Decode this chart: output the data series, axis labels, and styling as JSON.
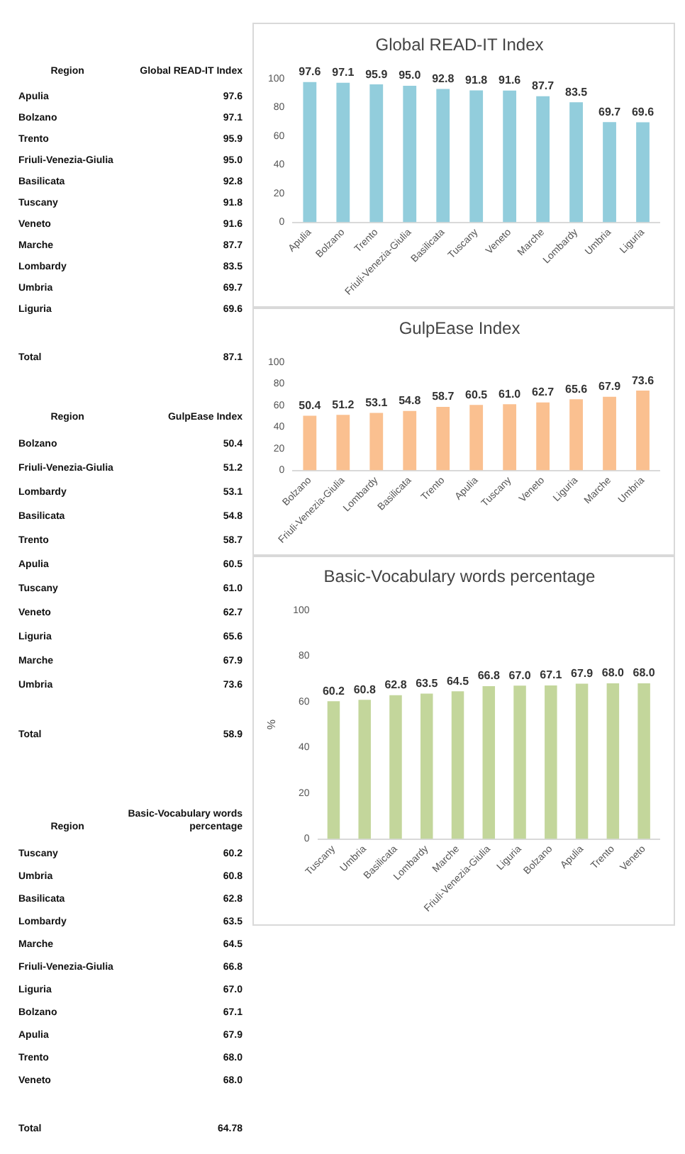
{
  "chart_data": [
    {
      "type": "bar",
      "title": "Global READ-IT Index",
      "categories": [
        "Apulia",
        "Bolzano",
        "Trento",
        "Friuli-Venezia-Giulia",
        "Basilicata",
        "Tuscany",
        "Veneto",
        "Marche",
        "Lombardy",
        "Umbria",
        "Liguria"
      ],
      "values": [
        97.6,
        97.1,
        95.9,
        95.0,
        92.8,
        91.8,
        91.6,
        87.7,
        83.5,
        69.7,
        69.6
      ],
      "value_labels": [
        "97.6",
        "97.1",
        "95.9",
        "95.0",
        "92.8",
        "91.8",
        "91.6",
        "87.7",
        "83.5",
        "69.7",
        "69.6"
      ],
      "color": "#92cddc",
      "ylim": [
        0,
        100
      ],
      "yticks": [
        0,
        20,
        40,
        60,
        80,
        100
      ],
      "grid": false,
      "legend": false,
      "annotations": [
        "Region",
        "Global READ-IT Index",
        "Total",
        "87.1"
      ]
    },
    {
      "type": "bar",
      "title": "GulpEase Index",
      "categories": [
        "Bolzano",
        "Friuli-Venezia-Giulia",
        "Lombardy",
        "Basilicata",
        "Trento",
        "Apulia",
        "Tuscany",
        "Veneto",
        "Liguria",
        "Marche",
        "Umbria"
      ],
      "values": [
        50.4,
        51.2,
        53.1,
        54.8,
        58.7,
        60.5,
        61.0,
        62.7,
        65.6,
        67.9,
        73.6
      ],
      "value_labels": [
        "50.4",
        "51.2",
        "53.1",
        "54.8",
        "58.7",
        "60.5",
        "61.0",
        "62.7",
        "65.6",
        "67.9",
        "73.6"
      ],
      "color": "#fac090",
      "ylim": [
        0,
        100
      ],
      "yticks": [
        0,
        20,
        40,
        60,
        80,
        100
      ],
      "grid": false,
      "legend": false,
      "annotations": [
        "Region",
        "GulpEase Index",
        "Total",
        "58.9"
      ]
    },
    {
      "type": "bar",
      "title": "Basic-Vocabulary words percentage",
      "ylabel": "%",
      "categories": [
        "Tuscany",
        "Umbria",
        "Basilicata",
        "Lombardy",
        "Marche",
        "Friuli-Venezia-Giulia",
        "Liguria",
        "Bolzano",
        "Apulia",
        "Trento",
        "Veneto"
      ],
      "values": [
        60.2,
        60.8,
        62.8,
        63.5,
        64.5,
        66.8,
        67.0,
        67.1,
        67.9,
        68.0,
        68.0
      ],
      "value_labels": [
        "60.2",
        "60.8",
        "62.8",
        "63.5",
        "64.5",
        "66.8",
        "67.0",
        "67.1",
        "67.9",
        "68.0",
        "68.0"
      ],
      "color": "#c3d69b",
      "ylim": [
        0,
        100
      ],
      "yticks": [
        0,
        20,
        40,
        60,
        80,
        100
      ],
      "grid": false,
      "legend": false,
      "annotations": [
        "Region",
        "Basic-Vocabulary words percentage",
        "Total",
        "64.78"
      ]
    }
  ]
}
